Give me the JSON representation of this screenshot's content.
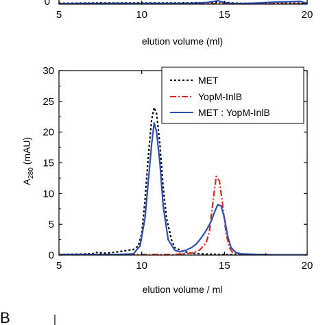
{
  "panel_letter": "B",
  "chart_data": [
    {
      "type": "line",
      "xlabel": "elution volume (ml)",
      "ylabel": "",
      "xlim": [
        5,
        20
      ],
      "ylim": [
        0,
        30
      ],
      "x_ticks": [
        "5",
        "10",
        "15",
        "20"
      ],
      "y_ticks": [
        "0"
      ],
      "grid": false,
      "legend": false,
      "series": [
        {
          "style": "dotted",
          "color": "#000000",
          "x": [
            5,
            7,
            10,
            12,
            14,
            14.8,
            15.1,
            15.5,
            16,
            18,
            20
          ],
          "y": [
            0.15,
            0.2,
            0.2,
            0.2,
            0.25,
            0.4,
            0.3,
            0.2,
            0.15,
            0.15,
            0.2
          ]
        },
        {
          "style": "dashdot",
          "color": "#e3261b",
          "x": [
            5,
            10,
            14,
            15,
            16,
            20
          ],
          "y": [
            0.05,
            0.05,
            0.1,
            0.1,
            0.05,
            0.05
          ]
        },
        {
          "style": "solid",
          "color": "#2a4fb4",
          "x": [
            5,
            7,
            10,
            13,
            14,
            14.6,
            15,
            15.4,
            16,
            17,
            18,
            19,
            19.6,
            20
          ],
          "y": [
            0.1,
            0.15,
            0.15,
            0.15,
            0.3,
            0.6,
            0.3,
            0.15,
            0.1,
            0.2,
            0.35,
            0.45,
            0.5,
            0.1
          ]
        }
      ]
    },
    {
      "type": "line",
      "xlabel": "elution volume / ml",
      "ylabel_main": "A",
      "ylabel_sub": "280",
      "ylabel_unit": " (mAU)",
      "xlim": [
        5,
        20
      ],
      "ylim": [
        0,
        30
      ],
      "x_ticks": [
        "5",
        "10",
        "15",
        "20"
      ],
      "y_ticks": [
        "0",
        "5",
        "10",
        "15",
        "20",
        "25",
        "30"
      ],
      "grid": false,
      "legend_position": "top-right",
      "series": [
        {
          "name": "MET",
          "style": "dotted",
          "color": "#000000",
          "x": [
            5,
            6,
            7,
            7.3,
            7.8,
            8.5,
            9,
            9.5,
            9.8,
            10,
            10.2,
            10.4,
            10.6,
            10.75,
            10.9,
            11.1,
            11.3,
            11.5,
            11.8,
            12,
            12.5,
            13,
            14,
            15,
            16,
            17,
            18,
            19,
            20
          ],
          "y": [
            0.1,
            0.15,
            0.2,
            0.45,
            0.3,
            0.5,
            0.7,
            0.9,
            1.5,
            3.5,
            9,
            16,
            22,
            24,
            23,
            18,
            11,
            6,
            2.5,
            1.2,
            0.6,
            0.3,
            0.15,
            0.1,
            0.05,
            0.05,
            0.05,
            0.05,
            0.05
          ]
        },
        {
          "name": "YopM-InlB",
          "style": "dashdot",
          "color": "#e3261b",
          "x": [
            5,
            8,
            10,
            12,
            13,
            13.5,
            13.9,
            14.1,
            14.3,
            14.5,
            14.7,
            14.9,
            15.1,
            15.3,
            15.5,
            16,
            17,
            18,
            20
          ],
          "y": [
            0.05,
            0.05,
            0.1,
            0.1,
            0.3,
            0.8,
            2,
            4,
            8.5,
            12.8,
            12,
            8,
            3.5,
            1.2,
            0.4,
            0.15,
            0.1,
            0.05,
            0.05
          ]
        },
        {
          "name": "MET : YopM-InlB",
          "style": "solid",
          "color": "#2a4fb4",
          "x": [
            5,
            7,
            8.5,
            9.5,
            9.9,
            10.2,
            10.4,
            10.6,
            10.75,
            10.9,
            11.1,
            11.3,
            11.6,
            12,
            12.3,
            12.7,
            13,
            13.3,
            13.6,
            13.9,
            14.2,
            14.4,
            14.6,
            14.8,
            15,
            15.2,
            15.4,
            15.7,
            16,
            17,
            18,
            20
          ],
          "y": [
            0.1,
            0.1,
            0.1,
            0.2,
            1.5,
            6,
            12,
            18,
            21.5,
            20,
            15,
            8,
            2.5,
            0.8,
            0.5,
            0.8,
            1.2,
            1.8,
            2.8,
            4,
            5.5,
            7,
            8.2,
            8,
            6,
            3,
            1.2,
            0.4,
            0.2,
            0.1,
            0.05,
            0.05
          ]
        }
      ]
    }
  ]
}
